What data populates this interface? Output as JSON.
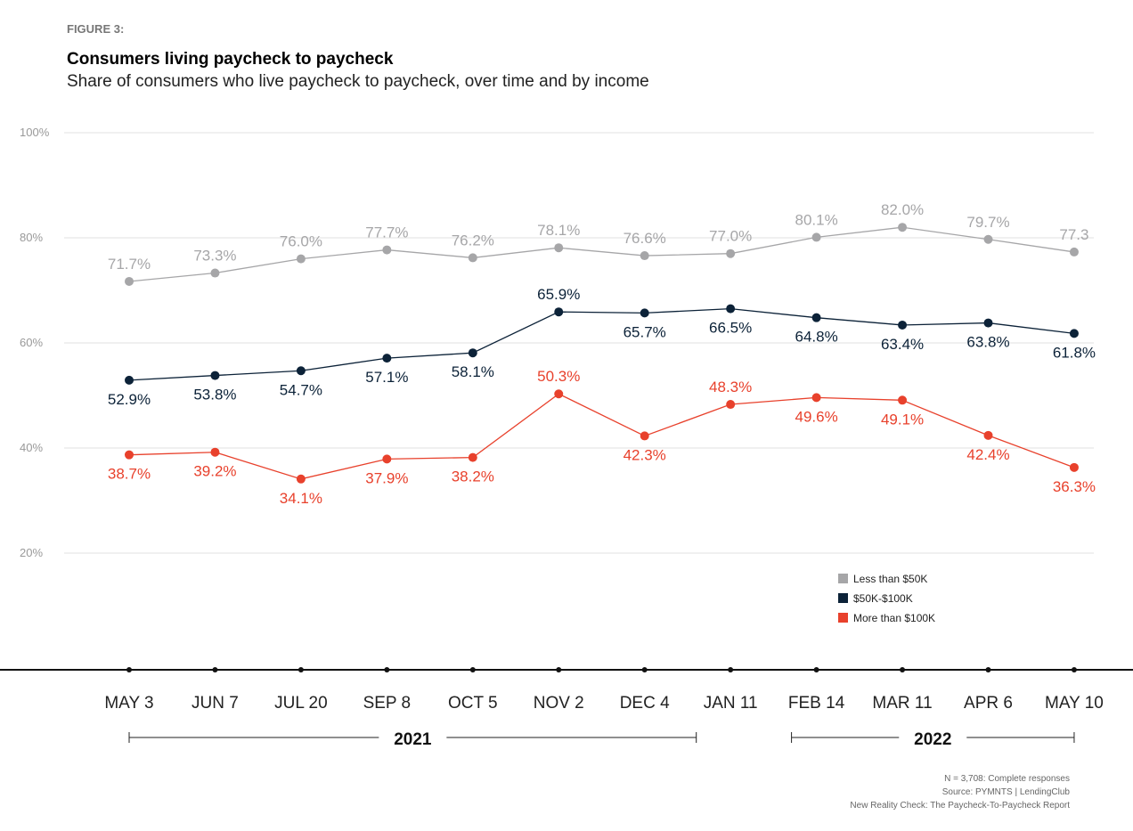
{
  "figure_label": "FIGURE 3:",
  "title": "Consumers living paycheck to paycheck",
  "subtitle": "Share of consumers who live paycheck to paycheck, over time and by income",
  "chart_data": {
    "type": "line",
    "categories": [
      "MAY 3",
      "JUN 7",
      "JUL 20",
      "SEP 8",
      "OCT 5",
      "NOV 2",
      "DEC 4",
      "JAN 11",
      "FEB 14",
      "MAR 11",
      "APR 6",
      "MAY 10"
    ],
    "year_groups": [
      {
        "label": "2021",
        "from": "MAY 3",
        "to": "DEC 4"
      },
      {
        "label": "2022",
        "from": "FEB 14",
        "to": "MAY 10"
      }
    ],
    "yticks": [
      "100%",
      "80%",
      "60%",
      "40%",
      "20%"
    ],
    "ytick_values": [
      100,
      80,
      60,
      40,
      20
    ],
    "ylim": [
      0,
      100
    ],
    "grid": true,
    "legend_placement": "bottom-right",
    "series": [
      {
        "name": "Less than $50K",
        "color": "#a6a6a8",
        "values": [
          71.7,
          73.3,
          76.0,
          77.7,
          76.2,
          78.1,
          76.6,
          77.0,
          80.1,
          82.0,
          79.7,
          77.3
        ],
        "labels": [
          "71.7%",
          "73.3%",
          "76.0%",
          "77.7%",
          "76.2%",
          "78.1%",
          "76.6%",
          "77.0%",
          "80.1%",
          "82.0%",
          "79.7%",
          "77.3"
        ]
      },
      {
        "name": "$50K-$100K",
        "color": "#0c2238",
        "values": [
          52.9,
          53.8,
          54.7,
          57.1,
          58.1,
          65.9,
          65.7,
          66.5,
          64.8,
          63.4,
          63.8,
          61.8
        ],
        "labels": [
          "52.9%",
          "53.8%",
          "54.7%",
          "57.1%",
          "58.1%",
          "65.9%",
          "65.7%",
          "66.5%",
          "64.8%",
          "63.4%",
          "63.8%",
          "61.8%"
        ]
      },
      {
        "name": "More than $100K",
        "color": "#e8412c",
        "values": [
          38.7,
          39.2,
          34.1,
          37.9,
          38.2,
          50.3,
          42.3,
          48.3,
          49.6,
          49.1,
          42.4,
          36.3
        ],
        "labels": [
          "38.7%",
          "39.2%",
          "34.1%",
          "37.9%",
          "38.2%",
          "50.3%",
          "42.3%",
          "48.3%",
          "49.6%",
          "49.1%",
          "42.4%",
          "36.3%"
        ]
      }
    ]
  },
  "footnotes": [
    "N = 3,708: Complete responses",
    "Source: PYMNTS  |  LendingClub",
    "New Reality Check: The Paycheck-To-Paycheck Report"
  ]
}
